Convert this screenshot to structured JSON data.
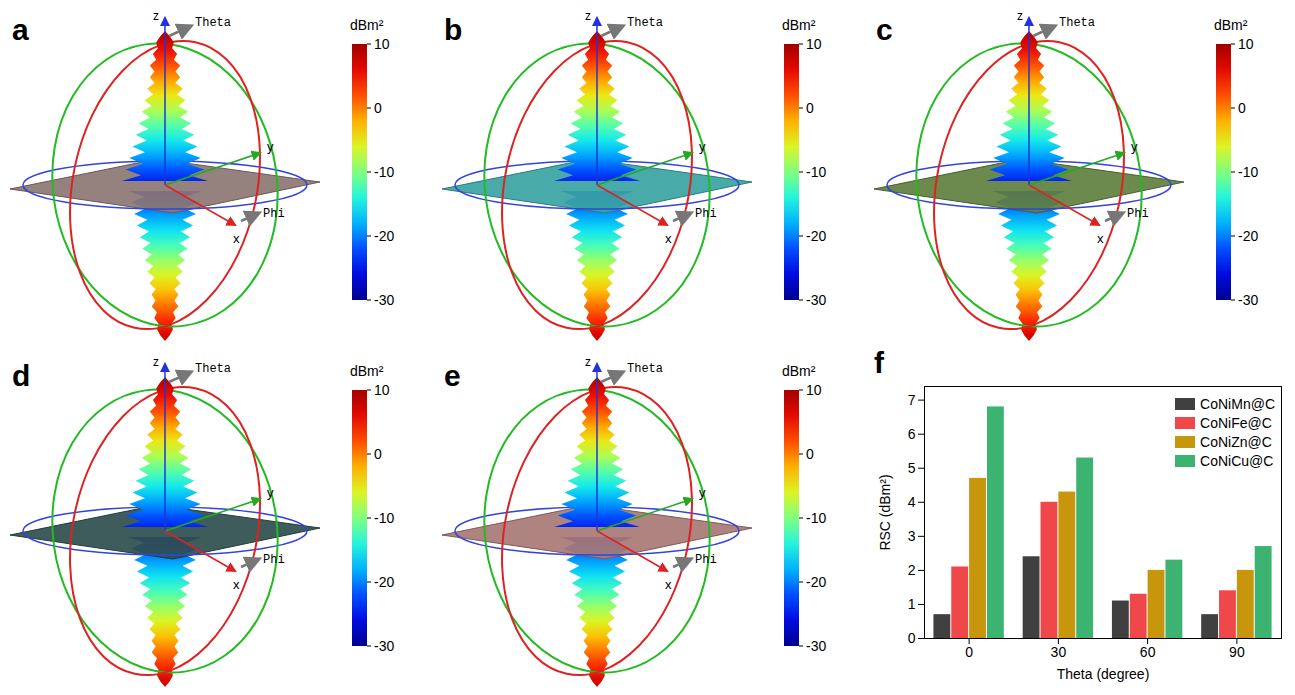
{
  "panels": [
    {
      "letter": "a",
      "color": "#8c7673"
    },
    {
      "letter": "b",
      "color": "#3aa3a3"
    },
    {
      "letter": "c",
      "color": "#5f7f3f"
    },
    {
      "letter": "d",
      "color": "#2f4e4f"
    },
    {
      "letter": "e",
      "color": "#a87874"
    }
  ],
  "scene_labels": {
    "z": "z",
    "y": "y",
    "x": "x",
    "theta": "Theta",
    "phi": "Phi"
  },
  "colorbar": {
    "label": "dBm²",
    "range": [
      -30,
      10
    ],
    "ticks": [
      10,
      0,
      -10,
      -20,
      -30
    ]
  },
  "chart_data": {
    "letter": "f",
    "type": "bar",
    "xlabel": "Theta (degree)",
    "ylabel": "RSC (dBm²)",
    "categories": [
      0,
      30,
      60,
      90
    ],
    "ylim": [
      0,
      7.4
    ],
    "yticks": [
      0,
      1,
      2,
      3,
      4,
      5,
      6,
      7
    ],
    "legend": "top-right",
    "series": [
      {
        "name": "CoNiMn@C",
        "color": "#404040",
        "values": [
          0.7,
          2.4,
          1.1,
          0.7
        ]
      },
      {
        "name": "CoNiFe@C",
        "color": "#f0484a",
        "values": [
          2.1,
          4.0,
          1.3,
          1.4
        ]
      },
      {
        "name": "CoNiZn@C",
        "color": "#c8960c",
        "values": [
          4.7,
          4.3,
          2.0,
          2.0
        ]
      },
      {
        "name": "CoNiCu@C",
        "color": "#3cb371",
        "values": [
          6.8,
          5.3,
          2.3,
          2.7
        ]
      }
    ]
  }
}
